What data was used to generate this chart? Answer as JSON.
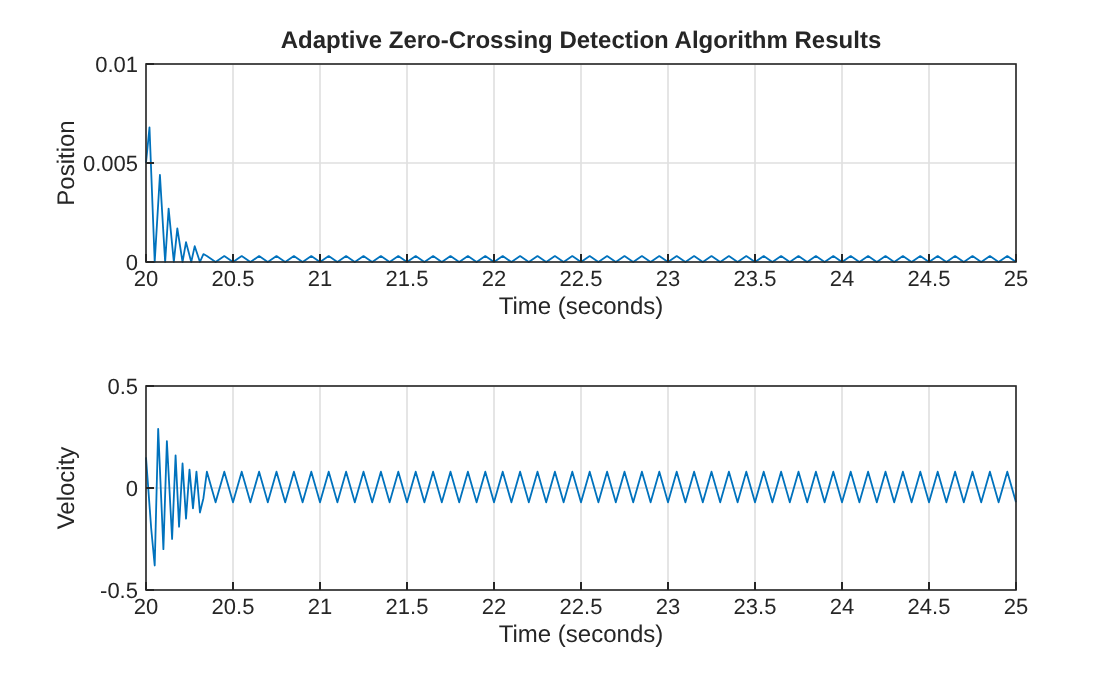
{
  "chart_data": [
    {
      "type": "line",
      "title": "Adaptive Zero-Crossing Detection Algorithm Results",
      "xlabel": "Time (seconds)",
      "ylabel": "Position",
      "grid": true,
      "xlim": [
        20,
        25
      ],
      "ylim": [
        0,
        0.01
      ],
      "xticks": [
        20,
        20.5,
        21,
        21.5,
        22,
        22.5,
        23,
        23.5,
        24,
        24.5,
        25
      ],
      "yticks": [
        0,
        0.005,
        0.01
      ],
      "x": [
        20,
        20.02,
        20.05,
        20.08,
        20.11,
        20.13,
        20.16,
        20.18,
        20.21,
        20.23,
        20.26,
        20.28,
        20.31,
        20.33,
        20.35,
        20.4,
        20.45,
        20.5,
        20.55,
        20.6,
        20.65,
        20.7,
        20.75,
        20.8,
        20.85,
        20.9,
        20.95,
        21,
        21.05,
        21.1,
        21.15,
        21.2,
        21.25,
        21.3,
        21.35,
        21.4,
        21.45,
        21.5,
        21.55,
        21.6,
        21.65,
        21.7,
        21.75,
        21.8,
        21.85,
        21.9,
        21.95,
        22,
        22.05,
        22.1,
        22.15,
        22.2,
        22.25,
        22.3,
        22.35,
        22.4,
        22.45,
        22.5,
        22.55,
        22.6,
        22.65,
        22.7,
        22.75,
        22.8,
        22.85,
        22.9,
        22.95,
        23,
        23.05,
        23.1,
        23.15,
        23.2,
        23.25,
        23.3,
        23.35,
        23.4,
        23.45,
        23.5,
        23.55,
        23.6,
        23.65,
        23.7,
        23.75,
        23.8,
        23.85,
        23.9,
        23.95,
        24,
        24.05,
        24.1,
        24.15,
        24.2,
        24.25,
        24.3,
        24.35,
        24.4,
        24.45,
        24.5,
        24.55,
        24.6,
        24.65,
        24.7,
        24.75,
        24.8,
        24.85,
        24.9,
        24.95,
        25
      ],
      "series": [
        {
          "color": "#0072bd",
          "values": [
            0.005,
            0.0068,
            0,
            0.0044,
            0,
            0.0027,
            0,
            0.0017,
            0,
            0.001,
            0,
            0.0008,
            0,
            0.0004,
            0.0003,
            0,
            0.0003,
            0,
            0.0003,
            0,
            0.0003,
            0,
            0.0003,
            0,
            0.0003,
            0,
            0.0003,
            0,
            0.0003,
            0,
            0.0003,
            0,
            0.0003,
            0,
            0.0003,
            0,
            0.0003,
            0,
            0.0003,
            0,
            0.0003,
            0,
            0.0003,
            0,
            0.0003,
            0,
            0.0003,
            0,
            0.0003,
            0,
            0.0003,
            0,
            0.0003,
            0,
            0.0003,
            0,
            0.0003,
            0,
            0.0003,
            0,
            0.0003,
            0,
            0.0003,
            0,
            0.0003,
            0,
            0.0003,
            0,
            0.0003,
            0,
            0.0003,
            0,
            0.0003,
            0,
            0.0003,
            0,
            0.0003,
            0,
            0.0003,
            0,
            0.0003,
            0,
            0.0003,
            0,
            0.0003,
            0,
            0.0003,
            0,
            0.0003,
            0,
            0.0003,
            0,
            0.0003,
            0,
            0.0003,
            0,
            0.0003,
            0,
            0.0003,
            0,
            0.0003,
            0,
            0.0003,
            0,
            0.0003,
            0,
            0.0003,
            0
          ]
        }
      ]
    },
    {
      "type": "line",
      "xlabel": "Time (seconds)",
      "ylabel": "Velocity",
      "grid": true,
      "xlim": [
        20,
        25
      ],
      "ylim": [
        -0.5,
        0.5
      ],
      "xticks": [
        20,
        20.5,
        21,
        21.5,
        22,
        22.5,
        23,
        23.5,
        24,
        24.5,
        25
      ],
      "yticks": [
        -0.5,
        0,
        0.5
      ],
      "x": [
        20,
        20.03,
        20.05,
        20.07,
        20.1,
        20.12,
        20.15,
        20.17,
        20.19,
        20.21,
        20.23,
        20.25,
        20.27,
        20.29,
        20.31,
        20.33,
        20.35,
        20.4,
        20.45,
        20.5,
        20.55,
        20.6,
        20.65,
        20.7,
        20.75,
        20.8,
        20.85,
        20.9,
        20.95,
        21,
        21.05,
        21.1,
        21.15,
        21.2,
        21.25,
        21.3,
        21.35,
        21.4,
        21.45,
        21.5,
        21.55,
        21.6,
        21.65,
        21.7,
        21.75,
        21.8,
        21.85,
        21.9,
        21.95,
        22,
        22.05,
        22.1,
        22.15,
        22.2,
        22.25,
        22.3,
        22.35,
        22.4,
        22.45,
        22.5,
        22.55,
        22.6,
        22.65,
        22.7,
        22.75,
        22.8,
        22.85,
        22.9,
        22.95,
        23,
        23.05,
        23.1,
        23.15,
        23.2,
        23.25,
        23.3,
        23.35,
        23.4,
        23.45,
        23.5,
        23.55,
        23.6,
        23.65,
        23.7,
        23.75,
        23.8,
        23.85,
        23.9,
        23.95,
        24,
        24.05,
        24.1,
        24.15,
        24.2,
        24.25,
        24.3,
        24.35,
        24.4,
        24.45,
        24.5,
        24.55,
        24.6,
        24.65,
        24.7,
        24.75,
        24.8,
        24.85,
        24.9,
        24.95,
        25
      ],
      "series": [
        {
          "color": "#0072bd",
          "values": [
            0.15,
            -0.2,
            -0.38,
            0.29,
            -0.3,
            0.23,
            -0.25,
            0.16,
            -0.19,
            0.12,
            -0.15,
            0.09,
            -0.1,
            0.08,
            -0.12,
            -0.05,
            0.08,
            -0.07,
            0.08,
            -0.07,
            0.08,
            -0.07,
            0.08,
            -0.07,
            0.08,
            -0.07,
            0.08,
            -0.07,
            0.08,
            -0.07,
            0.08,
            -0.07,
            0.08,
            -0.07,
            0.08,
            -0.07,
            0.08,
            -0.07,
            0.08,
            -0.07,
            0.08,
            -0.07,
            0.08,
            -0.07,
            0.08,
            -0.07,
            0.08,
            -0.07,
            0.08,
            -0.07,
            0.08,
            -0.07,
            0.08,
            -0.07,
            0.08,
            -0.07,
            0.08,
            -0.07,
            0.08,
            -0.07,
            0.08,
            -0.07,
            0.08,
            -0.07,
            0.08,
            -0.07,
            0.08,
            -0.07,
            0.08,
            -0.07,
            0.08,
            -0.07,
            0.08,
            -0.07,
            0.08,
            -0.07,
            0.08,
            -0.07,
            0.08,
            -0.07,
            0.08,
            -0.07,
            0.08,
            -0.07,
            0.08,
            -0.07,
            0.08,
            -0.07,
            0.08,
            -0.07,
            0.08,
            -0.07,
            0.08,
            -0.07,
            0.08,
            -0.07,
            0.08,
            -0.07,
            0.08,
            -0.07,
            0.08,
            -0.07,
            0.08,
            -0.07,
            0.08,
            -0.07,
            0.08,
            -0.07,
            0.08,
            -0.07
          ]
        }
      ]
    }
  ]
}
